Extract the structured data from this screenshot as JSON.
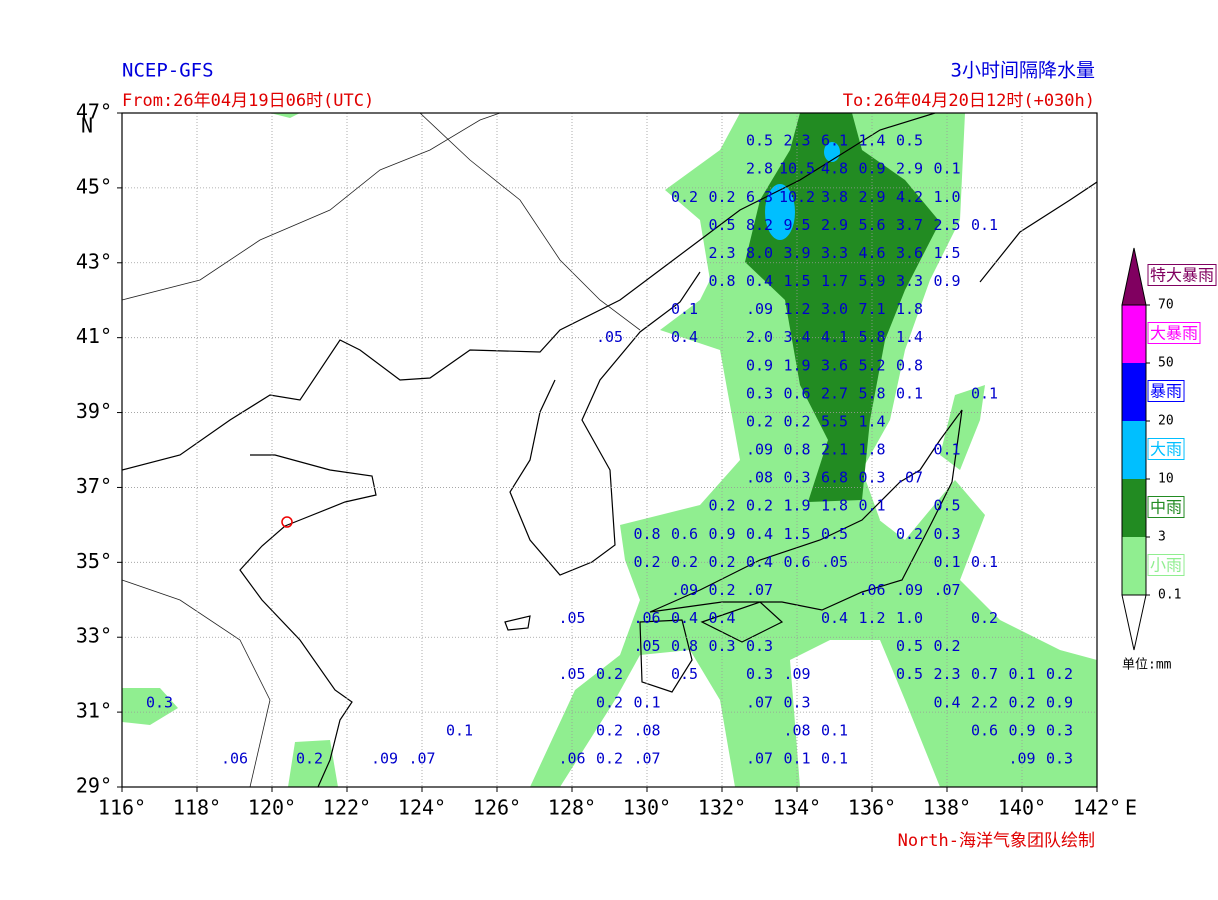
{
  "header": {
    "model": "NCEP-GFS",
    "title": "3小时间隔降水量",
    "from": "From:26年04月19日06时(UTC)",
    "to": "To:26年04月20日12时(+030h)",
    "credit": "North-海洋气象团队绘制"
  },
  "chart_data": {
    "type": "map",
    "grid": true,
    "xlim": [
      116,
      142
    ],
    "ylim": [
      29,
      47
    ],
    "x_unit": "E",
    "y_unit": "N",
    "xticks": [
      {
        "value": 116,
        "label": "116°"
      },
      {
        "value": 118,
        "label": "118°"
      },
      {
        "value": 120,
        "label": "120°"
      },
      {
        "value": 122,
        "label": "122°"
      },
      {
        "value": 124,
        "label": "124°"
      },
      {
        "value": 126,
        "label": "126°"
      },
      {
        "value": 128,
        "label": "128°"
      },
      {
        "value": 130,
        "label": "130°"
      },
      {
        "value": 132,
        "label": "132°"
      },
      {
        "value": 134,
        "label": "134°"
      },
      {
        "value": 136,
        "label": "136°"
      },
      {
        "value": 138,
        "label": "138°"
      },
      {
        "value": 140,
        "label": "140°"
      },
      {
        "value": 142,
        "label": "142°"
      }
    ],
    "yticks": [
      {
        "value": 29,
        "label": "29°"
      },
      {
        "value": 31,
        "label": "31°"
      },
      {
        "value": 33,
        "label": "33°"
      },
      {
        "value": 35,
        "label": "35°"
      },
      {
        "value": 37,
        "label": "37°"
      },
      {
        "value": 39,
        "label": "39°"
      },
      {
        "value": 41,
        "label": "41°"
      },
      {
        "value": 43,
        "label": "43°"
      },
      {
        "value": 45,
        "label": "45°"
      },
      {
        "value": 47,
        "label": "47°"
      }
    ],
    "value_color": "#0000cc",
    "rows": [
      {
        "lat": 46.25,
        "points": [
          {
            "lon": 133,
            "value": 0.5
          },
          {
            "lon": 134,
            "value": 2.3
          },
          {
            "lon": 135,
            "value": 6.1
          },
          {
            "lon": 136,
            "value": 1.4
          },
          {
            "lon": 137,
            "value": 0.5
          }
        ]
      },
      {
        "lat": 45.5,
        "points": [
          {
            "lon": 133,
            "value": 2.8
          },
          {
            "lon": 134,
            "value": 10.5
          },
          {
            "lon": 135,
            "value": 4.8
          },
          {
            "lon": 136,
            "value": 0.9
          },
          {
            "lon": 137,
            "value": 2.9
          },
          {
            "lon": 138,
            "value": 0.1
          }
        ]
      },
      {
        "lat": 44.75,
        "points": [
          {
            "lon": 131,
            "value": 0.2
          },
          {
            "lon": 132,
            "value": 0.2
          },
          {
            "lon": 133,
            "value": 6.3
          },
          {
            "lon": 134,
            "value": 10.2
          },
          {
            "lon": 135,
            "value": 3.8
          },
          {
            "lon": 136,
            "value": 2.9
          },
          {
            "lon": 137,
            "value": 4.2
          },
          {
            "lon": 138,
            "value": 1.0,
            "label": "1.0"
          }
        ]
      },
      {
        "lat": 44,
        "points": [
          {
            "lon": 132,
            "value": 0.5
          },
          {
            "lon": 133,
            "value": 8.2
          },
          {
            "lon": 134,
            "value": 9.5
          },
          {
            "lon": 135,
            "value": 2.9
          },
          {
            "lon": 136,
            "value": 5.6
          },
          {
            "lon": 137,
            "value": 3.7
          },
          {
            "lon": 138,
            "value": 2.5
          },
          {
            "lon": 139,
            "value": 0.1
          }
        ]
      },
      {
        "lat": 43.25,
        "points": [
          {
            "lon": 132,
            "value": 2.3
          },
          {
            "lon": 133,
            "value": 8.0,
            "label": "8.0"
          },
          {
            "lon": 134,
            "value": 3.9
          },
          {
            "lon": 135,
            "value": 3.3
          },
          {
            "lon": 136,
            "value": 4.6
          },
          {
            "lon": 137,
            "value": 3.6
          },
          {
            "lon": 138,
            "value": 1.5
          }
        ]
      },
      {
        "lat": 42.5,
        "points": [
          {
            "lon": 132,
            "value": 0.8
          },
          {
            "lon": 133,
            "value": 0.4
          },
          {
            "lon": 134,
            "value": 1.5
          },
          {
            "lon": 135,
            "value": 1.7
          },
          {
            "lon": 136,
            "value": 5.9
          },
          {
            "lon": 137,
            "value": 3.3
          },
          {
            "lon": 138,
            "value": 0.9
          }
        ]
      },
      {
        "lat": 41.75,
        "points": [
          {
            "lon": 131,
            "value": 0.1
          },
          {
            "lon": 133,
            "value": 0.09,
            "label": ".09"
          },
          {
            "lon": 134,
            "value": 1.2
          },
          {
            "lon": 135,
            "value": 3.0,
            "label": "3.0"
          },
          {
            "lon": 136,
            "value": 7.1
          },
          {
            "lon": 137,
            "value": 1.8
          }
        ]
      },
      {
        "lat": 41,
        "points": [
          {
            "lon": 129,
            "value": 0.05,
            "label": ".05"
          },
          {
            "lon": 131,
            "value": 0.4
          },
          {
            "lon": 133,
            "value": 2.0,
            "label": "2.0"
          },
          {
            "lon": 134,
            "value": 3.4
          },
          {
            "lon": 135,
            "value": 4.1
          },
          {
            "lon": 136,
            "value": 5.8
          },
          {
            "lon": 137,
            "value": 1.4
          }
        ]
      },
      {
        "lat": 40.25,
        "points": [
          {
            "lon": 133,
            "value": 0.9
          },
          {
            "lon": 134,
            "value": 1.9
          },
          {
            "lon": 135,
            "value": 3.6
          },
          {
            "lon": 136,
            "value": 5.2
          },
          {
            "lon": 137,
            "value": 0.8
          }
        ]
      },
      {
        "lat": 39.5,
        "points": [
          {
            "lon": 133,
            "value": 0.3
          },
          {
            "lon": 134,
            "value": 0.6
          },
          {
            "lon": 135,
            "value": 2.7
          },
          {
            "lon": 136,
            "value": 5.8
          },
          {
            "lon": 137,
            "value": 0.1
          },
          {
            "lon": 139,
            "value": 0.1
          }
        ]
      },
      {
        "lat": 38.75,
        "points": [
          {
            "lon": 133,
            "value": 0.2
          },
          {
            "lon": 134,
            "value": 0.2
          },
          {
            "lon": 135,
            "value": 5.5
          },
          {
            "lon": 136,
            "value": 1.4
          }
        ]
      },
      {
        "lat": 38,
        "points": [
          {
            "lon": 133,
            "value": 0.09,
            "label": ".09"
          },
          {
            "lon": 134,
            "value": 0.8
          },
          {
            "lon": 135,
            "value": 2.1
          },
          {
            "lon": 136,
            "value": 1.8
          },
          {
            "lon": 138,
            "value": 0.1
          }
        ]
      },
      {
        "lat": 37.25,
        "points": [
          {
            "lon": 133,
            "value": 0.08,
            "label": ".08"
          },
          {
            "lon": 134,
            "value": 0.3
          },
          {
            "lon": 135,
            "value": 6.8
          },
          {
            "lon": 136,
            "value": 0.3
          },
          {
            "lon": 137,
            "value": 0.07,
            "label": ".07"
          }
        ]
      },
      {
        "lat": 36.5,
        "points": [
          {
            "lon": 132,
            "value": 0.2
          },
          {
            "lon": 133,
            "value": 0.2
          },
          {
            "lon": 134,
            "value": 1.9
          },
          {
            "lon": 135,
            "value": 1.8
          },
          {
            "lon": 136,
            "value": 0.1
          },
          {
            "lon": 138,
            "value": 0.5
          }
        ]
      },
      {
        "lat": 35.75,
        "points": [
          {
            "lon": 130,
            "value": 0.8
          },
          {
            "lon": 131,
            "value": 0.6
          },
          {
            "lon": 132,
            "value": 0.9
          },
          {
            "lon": 133,
            "value": 0.4
          },
          {
            "lon": 134,
            "value": 1.5
          },
          {
            "lon": 135,
            "value": 0.5
          },
          {
            "lon": 137,
            "value": 0.2
          },
          {
            "lon": 138,
            "value": 0.3
          }
        ]
      },
      {
        "lat": 35,
        "points": [
          {
            "lon": 130,
            "value": 0.2
          },
          {
            "lon": 131,
            "value": 0.2
          },
          {
            "lon": 132,
            "value": 0.2
          },
          {
            "lon": 133,
            "value": 0.4
          },
          {
            "lon": 134,
            "value": 0.6
          },
          {
            "lon": 135,
            "value": 0.05,
            "label": ".05"
          },
          {
            "lon": 138,
            "value": 0.1
          },
          {
            "lon": 139,
            "value": 0.1
          }
        ]
      },
      {
        "lat": 34.25,
        "points": [
          {
            "lon": 131,
            "value": 0.09,
            "label": ".09"
          },
          {
            "lon": 132,
            "value": 0.2
          },
          {
            "lon": 133,
            "value": 0.07,
            "label": ".07"
          },
          {
            "lon": 136,
            "value": 0.06,
            "label": ".06"
          },
          {
            "lon": 137,
            "value": 0.09,
            "label": ".09"
          },
          {
            "lon": 138,
            "value": 0.07,
            "label": ".07"
          }
        ]
      },
      {
        "lat": 33.5,
        "points": [
          {
            "lon": 128,
            "value": 0.05,
            "label": ".05"
          },
          {
            "lon": 130,
            "value": 0.06,
            "label": ".06"
          },
          {
            "lon": 131,
            "value": 0.4
          },
          {
            "lon": 132,
            "value": 0.4
          },
          {
            "lon": 135,
            "value": 0.4
          },
          {
            "lon": 136,
            "value": 1.2
          },
          {
            "lon": 137,
            "value": 1.0,
            "label": "1.0"
          },
          {
            "lon": 139,
            "value": 0.2
          }
        ]
      },
      {
        "lat": 32.75,
        "points": [
          {
            "lon": 130,
            "value": 0.05,
            "label": ".05"
          },
          {
            "lon": 131,
            "value": 0.8
          },
          {
            "lon": 132,
            "value": 0.3
          },
          {
            "lon": 133,
            "value": 0.3
          },
          {
            "lon": 137,
            "value": 0.5
          },
          {
            "lon": 138,
            "value": 0.2
          }
        ]
      },
      {
        "lat": 32,
        "points": [
          {
            "lon": 128,
            "value": 0.05,
            "label": ".05"
          },
          {
            "lon": 129,
            "value": 0.2
          },
          {
            "lon": 131,
            "value": 0.5
          },
          {
            "lon": 133,
            "value": 0.3
          },
          {
            "lon": 134,
            "value": 0.09,
            "label": ".09"
          },
          {
            "lon": 137,
            "value": 0.5
          },
          {
            "lon": 138,
            "value": 2.3
          },
          {
            "lon": 139,
            "value": 0.7
          },
          {
            "lon": 140,
            "value": 0.1
          },
          {
            "lon": 141,
            "value": 0.2
          }
        ]
      },
      {
        "lat": 31.25,
        "points": [
          {
            "lon": 117,
            "value": 0.3
          },
          {
            "lon": 129,
            "value": 0.2
          },
          {
            "lon": 130,
            "value": 0.1
          },
          {
            "lon": 133,
            "value": 0.07,
            "label": ".07"
          },
          {
            "lon": 134,
            "value": 0.3
          },
          {
            "lon": 138,
            "value": 0.4
          },
          {
            "lon": 139,
            "value": 2.2
          },
          {
            "lon": 140,
            "value": 0.2
          },
          {
            "lon": 141,
            "value": 0.9
          }
        ]
      },
      {
        "lat": 30.5,
        "points": [
          {
            "lon": 125,
            "value": 0.1
          },
          {
            "lon": 129,
            "value": 0.2
          },
          {
            "lon": 130,
            "value": 0.08,
            "label": ".08"
          },
          {
            "lon": 134,
            "value": 0.08,
            "label": ".08"
          },
          {
            "lon": 135,
            "value": 0.1
          },
          {
            "lon": 139,
            "value": 0.6
          },
          {
            "lon": 140,
            "value": 0.9
          },
          {
            "lon": 141,
            "value": 0.3
          }
        ]
      },
      {
        "lat": 29.75,
        "points": [
          {
            "lon": 119,
            "value": 0.06,
            "label": ".06"
          },
          {
            "lon": 121,
            "value": 0.2
          },
          {
            "lon": 123,
            "value": 0.09,
            "label": ".09"
          },
          {
            "lon": 124,
            "value": 0.07,
            "label": ".07"
          },
          {
            "lon": 128,
            "value": 0.06,
            "label": ".06"
          },
          {
            "lon": 129,
            "value": 0.2
          },
          {
            "lon": 130,
            "value": 0.07,
            "label": ".07"
          },
          {
            "lon": 133,
            "value": 0.07,
            "label": ".07"
          },
          {
            "lon": 134,
            "value": 0.1
          },
          {
            "lon": 135,
            "value": 0.1
          },
          {
            "lon": 140,
            "value": 0.09,
            "label": ".09"
          },
          {
            "lon": 141,
            "value": 0.3
          }
        ]
      }
    ]
  },
  "legend": {
    "unit": "单位:mm",
    "levels": [
      0.1,
      3,
      10,
      20,
      50,
      70
    ],
    "classes": [
      {
        "name": "小雨",
        "color": "#90ee90"
      },
      {
        "name": "中雨",
        "color": "#228b22"
      },
      {
        "name": "大雨",
        "color": "#00bfff"
      },
      {
        "name": "暴雨",
        "color": "#0000ff"
      },
      {
        "name": "大暴雨",
        "color": "#ff00ff"
      },
      {
        "name": "特大暴雨",
        "color": "#800060"
      }
    ]
  }
}
